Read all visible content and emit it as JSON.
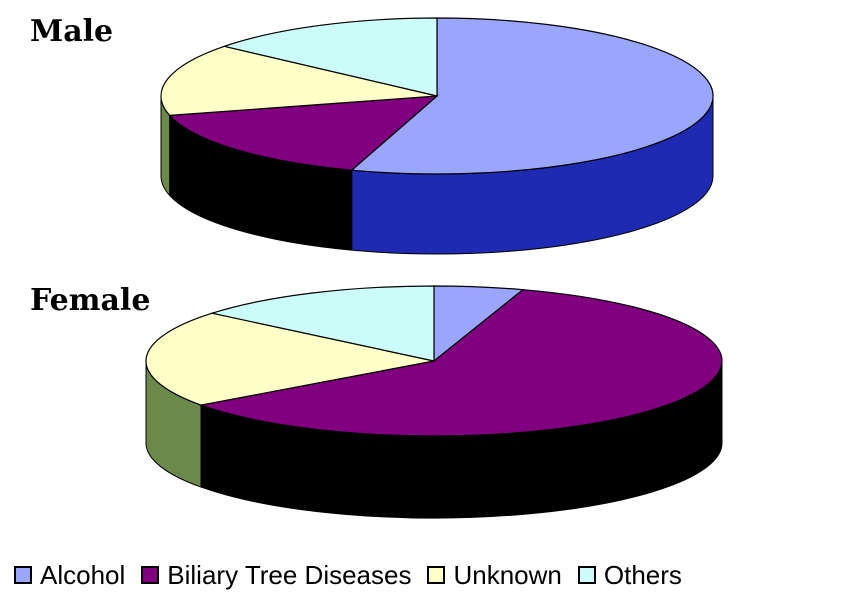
{
  "chart_data": [
    {
      "type": "pie",
      "title": "Male",
      "categories": [
        "Alcohol",
        "Biliary Tree Diseases",
        "Unknown",
        "Others"
      ],
      "values": [
        55,
        16,
        15,
        14
      ],
      "colors": [
        "#9aa6fb",
        "#800080",
        "#ffffc8",
        "#ccfcfa"
      ],
      "side_colors": [
        "#1f2ab3",
        "#000000",
        "#6b8a4a",
        "#000000"
      ]
    },
    {
      "type": "pie",
      "title": "Female",
      "categories": [
        "Alcohol",
        "Biliary Tree Diseases",
        "Unknown",
        "Others"
      ],
      "values": [
        5,
        60,
        21,
        14
      ],
      "colors": [
        "#9aa6fb",
        "#800080",
        "#ffffc8",
        "#ccfcfa"
      ],
      "side_colors": [
        "#1f2ab3",
        "#000000",
        "#6b8a4a",
        "#000000"
      ]
    }
  ],
  "legend": {
    "items": [
      {
        "label": "Alcohol",
        "color": "#9aa6fb"
      },
      {
        "label": "Biliary Tree Diseases",
        "color": "#800080"
      },
      {
        "label": "Unknown",
        "color": "#ffffc8"
      },
      {
        "label": "Others",
        "color": "#ccfcfa"
      }
    ]
  }
}
